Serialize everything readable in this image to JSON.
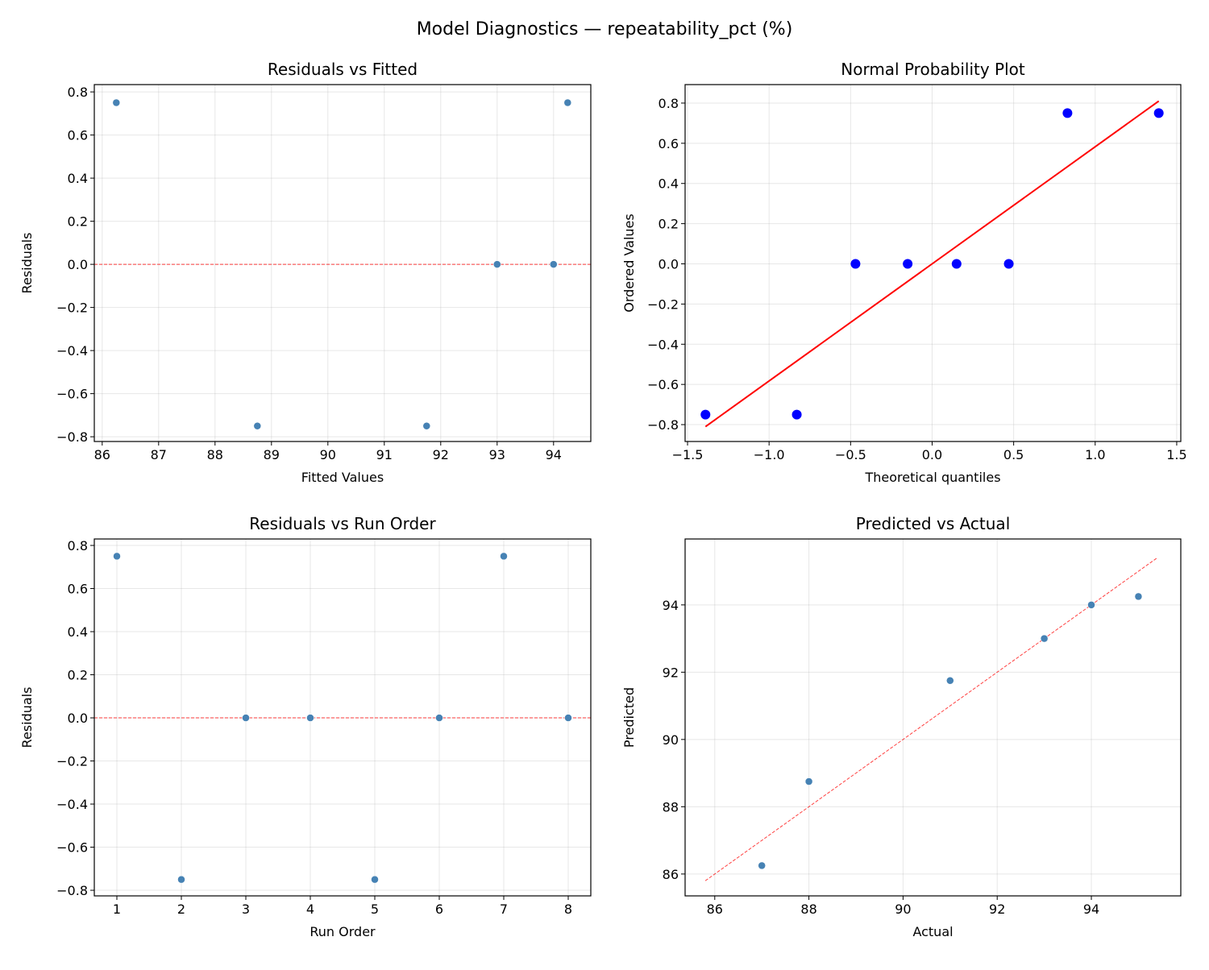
{
  "suptitle": "Model Diagnostics — repeatability_pct (%)",
  "chart_data": [
    {
      "type": "scatter",
      "title": "Residuals vs Fitted",
      "xlabel": "Fitted Values",
      "ylabel": "Residuals",
      "xlim": [
        85.86,
        94.66
      ],
      "ylim": [
        -0.822,
        0.834
      ],
      "xticks": [
        86,
        87,
        88,
        89,
        90,
        91,
        92,
        93,
        94
      ],
      "yticks": [
        -0.8,
        -0.6,
        -0.4,
        -0.2,
        0.0,
        0.2,
        0.4,
        0.6,
        0.8
      ],
      "grid": true,
      "points": {
        "x": [
          86.25,
          88.75,
          93,
          94,
          91.75,
          93,
          94.25,
          94
        ],
        "y": [
          0.75,
          -0.75,
          0,
          0,
          -0.75,
          0,
          0.75,
          0
        ]
      },
      "point_color": "#4682b4",
      "reference_line": {
        "kind": "hline",
        "y": 0,
        "color": "#ff0000",
        "style": "dashed"
      }
    },
    {
      "type": "scatter",
      "title": "Normal Probability Plot",
      "xlabel": "Theoretical quantiles",
      "ylabel": "Ordered Values",
      "xlim": [
        -1.515,
        1.525
      ],
      "ylim": [
        -0.884,
        0.892
      ],
      "xticks": [
        -1.5,
        -1.0,
        -0.5,
        0.0,
        0.5,
        1.0,
        1.5
      ],
      "yticks": [
        -0.8,
        -0.6,
        -0.4,
        -0.2,
        0.0,
        0.2,
        0.4,
        0.6,
        0.8
      ],
      "grid": true,
      "points": {
        "x": [
          -1.39,
          -0.83,
          -0.47,
          -0.15,
          0.15,
          0.47,
          0.83,
          1.39
        ],
        "y": [
          -0.75,
          -0.75,
          0,
          0,
          0,
          0,
          0.75,
          0.75
        ]
      },
      "point_color": "#0000ff",
      "reference_line": {
        "kind": "line",
        "x": [
          -1.39,
          1.39
        ],
        "y": [
          -0.81,
          0.81
        ],
        "color": "#ff0000",
        "style": "solid"
      }
    },
    {
      "type": "scatter",
      "title": "Residuals vs Run Order",
      "xlabel": "Run Order",
      "ylabel": "Residuals",
      "xlim": [
        0.65,
        8.35
      ],
      "ylim": [
        -0.826,
        0.83
      ],
      "xticks": [
        1,
        2,
        3,
        4,
        5,
        6,
        7,
        8
      ],
      "yticks": [
        -0.8,
        -0.6,
        -0.4,
        -0.2,
        0.0,
        0.2,
        0.4,
        0.6,
        0.8
      ],
      "grid": true,
      "points": {
        "x": [
          1,
          2,
          3,
          4,
          5,
          6,
          7,
          8
        ],
        "y": [
          0.75,
          -0.75,
          0,
          0,
          -0.75,
          0,
          0.75,
          0
        ]
      },
      "point_color": "#4682b4",
      "reference_line": {
        "kind": "hline",
        "y": 0,
        "color": "#ff0000",
        "style": "dashed"
      }
    },
    {
      "type": "scatter",
      "title": "Predicted vs Actual",
      "xlabel": "Actual",
      "ylabel": "Predicted",
      "xlim": [
        85.37,
        95.9
      ],
      "ylim": [
        85.35,
        95.96
      ],
      "xticks": [
        86,
        88,
        90,
        92,
        94
      ],
      "yticks": [
        86,
        88,
        90,
        92,
        94
      ],
      "grid": true,
      "points": {
        "x": [
          87,
          88,
          93,
          94,
          91,
          93,
          95,
          94
        ],
        "y": [
          86.25,
          88.75,
          93,
          94,
          91.75,
          93,
          94.25,
          94
        ]
      },
      "point_color": "#4682b4",
      "reference_line": {
        "kind": "line",
        "x": [
          85.8,
          95.4
        ],
        "y": [
          85.8,
          95.4
        ],
        "color": "#ff0000",
        "style": "dashed"
      }
    }
  ]
}
